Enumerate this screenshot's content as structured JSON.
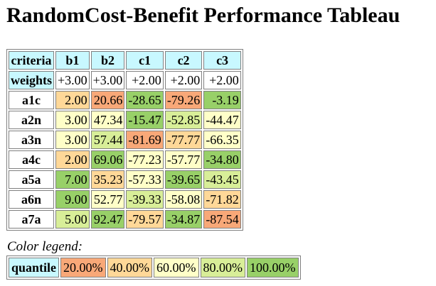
{
  "title": "RandomCost-Benefit Performance Tableau",
  "colors": {
    "header": "#c8f8ff",
    "q20": "#f8a878",
    "q40": "#ffd898",
    "q60": "#ffffc8",
    "q80": "#d8ee98",
    "q100": "#98d068"
  },
  "table": {
    "corner": "criteria",
    "criteria": [
      "b1",
      "b2",
      "c1",
      "c2",
      "c3"
    ],
    "weights_label": "weights",
    "weights": [
      "+3.00",
      "+3.00",
      "+2.00",
      "+2.00",
      "+2.00"
    ],
    "rows": [
      {
        "name": "a1c",
        "values": [
          "2.00",
          "20.66",
          "-28.65",
          "-79.26",
          "-3.19"
        ],
        "quantiles": [
          "q40",
          "q20",
          "q100",
          "q20",
          "q100"
        ]
      },
      {
        "name": "a2n",
        "values": [
          "3.00",
          "47.34",
          "-15.47",
          "-52.85",
          "-44.47"
        ],
        "quantiles": [
          "q60",
          "q60",
          "q100",
          "q80",
          "q60"
        ]
      },
      {
        "name": "a3n",
        "values": [
          "3.00",
          "57.44",
          "-81.69",
          "-77.77",
          "-66.35"
        ],
        "quantiles": [
          "q60",
          "q80",
          "q20",
          "q40",
          "q60"
        ]
      },
      {
        "name": "a4c",
        "values": [
          "2.00",
          "69.06",
          "-77.23",
          "-57.77",
          "-34.80"
        ],
        "quantiles": [
          "q40",
          "q100",
          "q60",
          "q60",
          "q100"
        ]
      },
      {
        "name": "a5a",
        "values": [
          "7.00",
          "35.23",
          "-57.33",
          "-39.65",
          "-43.45"
        ],
        "quantiles": [
          "q100",
          "q40",
          "q60",
          "q100",
          "q80"
        ]
      },
      {
        "name": "a6n",
        "values": [
          "9.00",
          "52.77",
          "-39.33",
          "-58.08",
          "-71.82"
        ],
        "quantiles": [
          "q100",
          "q60",
          "q80",
          "q60",
          "q40"
        ]
      },
      {
        "name": "a7a",
        "values": [
          "5.00",
          "92.47",
          "-79.57",
          "-34.87",
          "-87.54"
        ],
        "quantiles": [
          "q80",
          "q100",
          "q40",
          "q100",
          "q20"
        ]
      }
    ]
  },
  "legend": {
    "caption": "Color legend:",
    "header": "quantile",
    "items": [
      {
        "label": "20.00%",
        "quantile": "q20"
      },
      {
        "label": "40.00%",
        "quantile": "q40"
      },
      {
        "label": "60.00%",
        "quantile": "q60"
      },
      {
        "label": "80.00%",
        "quantile": "q80"
      },
      {
        "label": "100.00%",
        "quantile": "q100"
      }
    ]
  }
}
